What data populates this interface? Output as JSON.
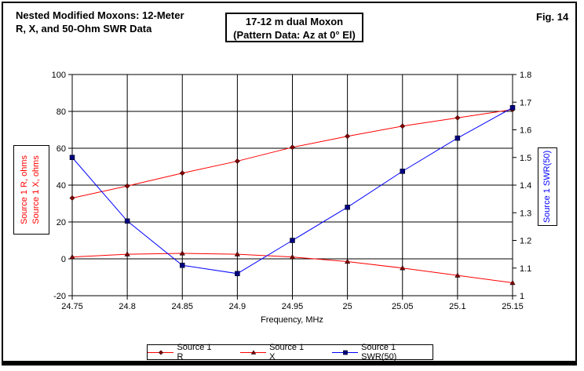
{
  "header": {
    "title_line1": "Nested Modified Moxons: 12-Meter",
    "title_line2": "R, X, and 50-Ohm SWR Data",
    "subtitle_line1": "17-12 m dual Moxon",
    "subtitle_line2": "(Pattern Data: Az at 0° El)",
    "fig_label": "Fig. 14"
  },
  "chart_data": {
    "type": "line",
    "title": "Nested Modified Moxons: 12-Meter R, X, and 50-Ohm SWR Data",
    "xlabel": "Frequency, MHz",
    "x": [
      24.75,
      24.8,
      24.85,
      24.9,
      24.95,
      25,
      25.05,
      25.1,
      25.15
    ],
    "x_tick_labels": [
      "24.75",
      "24.8",
      "24.85",
      "24.9",
      "24.95",
      "25",
      "25.05",
      "25.1",
      "25.15"
    ],
    "xlim": [
      24.75,
      25.15
    ],
    "grid": true,
    "legend_position": "bottom",
    "left_axis": {
      "min": -20,
      "max": 100,
      "tick_values": [
        100,
        80,
        60,
        40,
        20,
        0,
        -20
      ],
      "tick_labels": [
        "100",
        "80",
        "60",
        "40",
        "20",
        "0",
        "-20"
      ],
      "label_lines": [
        "Source 1 R,  ohms",
        "Source 1 X,  ohms"
      ],
      "color": "#ff0000"
    },
    "right_axis": {
      "min": 1,
      "max": 1.8,
      "tick_labels": [
        "1.8",
        "1.7",
        "1.6",
        "1.5",
        "1.4",
        "1.3",
        "1.2",
        "1.1",
        "1"
      ],
      "label": "Source 1 SWR(50)",
      "color": "#0000ff"
    },
    "series": [
      {
        "name": "Source 1 R",
        "axis": "left",
        "color": "#ff0000",
        "marker": "diamond",
        "marker_color": "#800000",
        "values": [
          33,
          39.5,
          46.5,
          53,
          60.5,
          66.5,
          72,
          76.5,
          81
        ]
      },
      {
        "name": "Source 1 X",
        "axis": "left",
        "color": "#ff0000",
        "marker": "triangle",
        "marker_color": "#800000",
        "values": [
          1,
          2.5,
          3,
          2.5,
          1,
          -1.5,
          -5,
          -9,
          -13
        ]
      },
      {
        "name": "Source 1 SWR(50)",
        "axis": "right",
        "color": "#0000ff",
        "marker": "square",
        "marker_color": "#000080",
        "values": [
          1.5,
          1.27,
          1.11,
          1.08,
          1.2,
          1.32,
          1.45,
          1.57,
          1.68
        ]
      }
    ]
  }
}
